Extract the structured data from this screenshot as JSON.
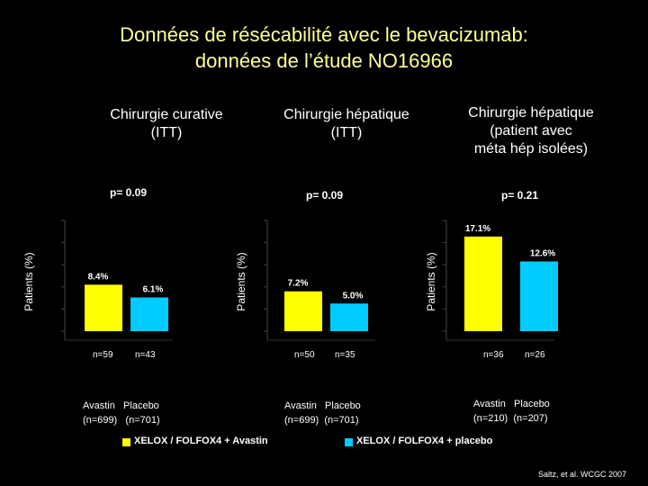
{
  "slide": {
    "title_line1": "Données de résécabilité avec le bevacizumab:",
    "title_line2": "données de l’étude NO16966",
    "credit": "Saltz, et al. WCGC 2007"
  },
  "panels": [
    {
      "title_lines": [
        "Chirurgie curative",
        "(ITT)"
      ],
      "pvalue": "p= 0.09",
      "ylabel": "Patients (%)",
      "n_labels": [
        "n=59",
        "n=43"
      ],
      "arm_names": [
        "Avastin",
        "Placebo"
      ],
      "arm_totals": [
        "(n=699)",
        "(n=701)"
      ]
    },
    {
      "title_lines": [
        "Chirurgie hépatique",
        "(ITT)"
      ],
      "pvalue": "p= 0.09",
      "ylabel": "Patients (%)",
      "n_labels": [
        "n=50",
        "n=35"
      ],
      "arm_names": [
        "Avastin",
        "Placebo"
      ],
      "arm_totals": [
        "(n=699)",
        "(n=701)"
      ]
    },
    {
      "title_lines": [
        "Chirurgie hépatique",
        "(patient avec",
        "méta hép isolées)"
      ],
      "pvalue": "p= 0.21",
      "ylabel": "Patients (%)",
      "n_labels": [
        "n=36",
        "n=26"
      ],
      "arm_names": [
        "Avastin",
        "Placebo"
      ],
      "arm_totals": [
        "(n=210)",
        "(n=207)"
      ]
    }
  ],
  "legend": [
    {
      "label": "XELOX / FOLFOX4 + Avastin",
      "color": "#FFFF00"
    },
    {
      "label": "XELOX / FOLFOX4 + placebo",
      "color": "#00CCFF"
    }
  ],
  "chart_data": [
    {
      "type": "bar",
      "title": "Chirurgie curative (ITT)",
      "ylabel": "Patients (%)",
      "categories": [
        "Avastin",
        "Placebo"
      ],
      "values": [
        8.4,
        6.1
      ],
      "value_labels": [
        "8.4%",
        "6.1%"
      ],
      "colors": [
        "#FFFF00",
        "#00CCFF"
      ],
      "ylim": [
        0,
        20
      ]
    },
    {
      "type": "bar",
      "title": "Chirurgie hépatique (ITT)",
      "ylabel": "Patients (%)",
      "categories": [
        "Avastin",
        "Placebo"
      ],
      "values": [
        7.2,
        5.0
      ],
      "value_labels": [
        "7.2%",
        "5.0%"
      ],
      "colors": [
        "#FFFF00",
        "#00CCFF"
      ],
      "ylim": [
        0,
        20
      ]
    },
    {
      "type": "bar",
      "title": "Chirurgie hépatique (patient avec méta hép isolées)",
      "ylabel": "Patients (%)",
      "categories": [
        "Avastin",
        "Placebo"
      ],
      "values": [
        17.1,
        12.6
      ],
      "value_labels": [
        "17.1%",
        "12.6%"
      ],
      "colors": [
        "#FFFF00",
        "#00CCFF"
      ],
      "ylim": [
        0,
        20
      ]
    }
  ]
}
